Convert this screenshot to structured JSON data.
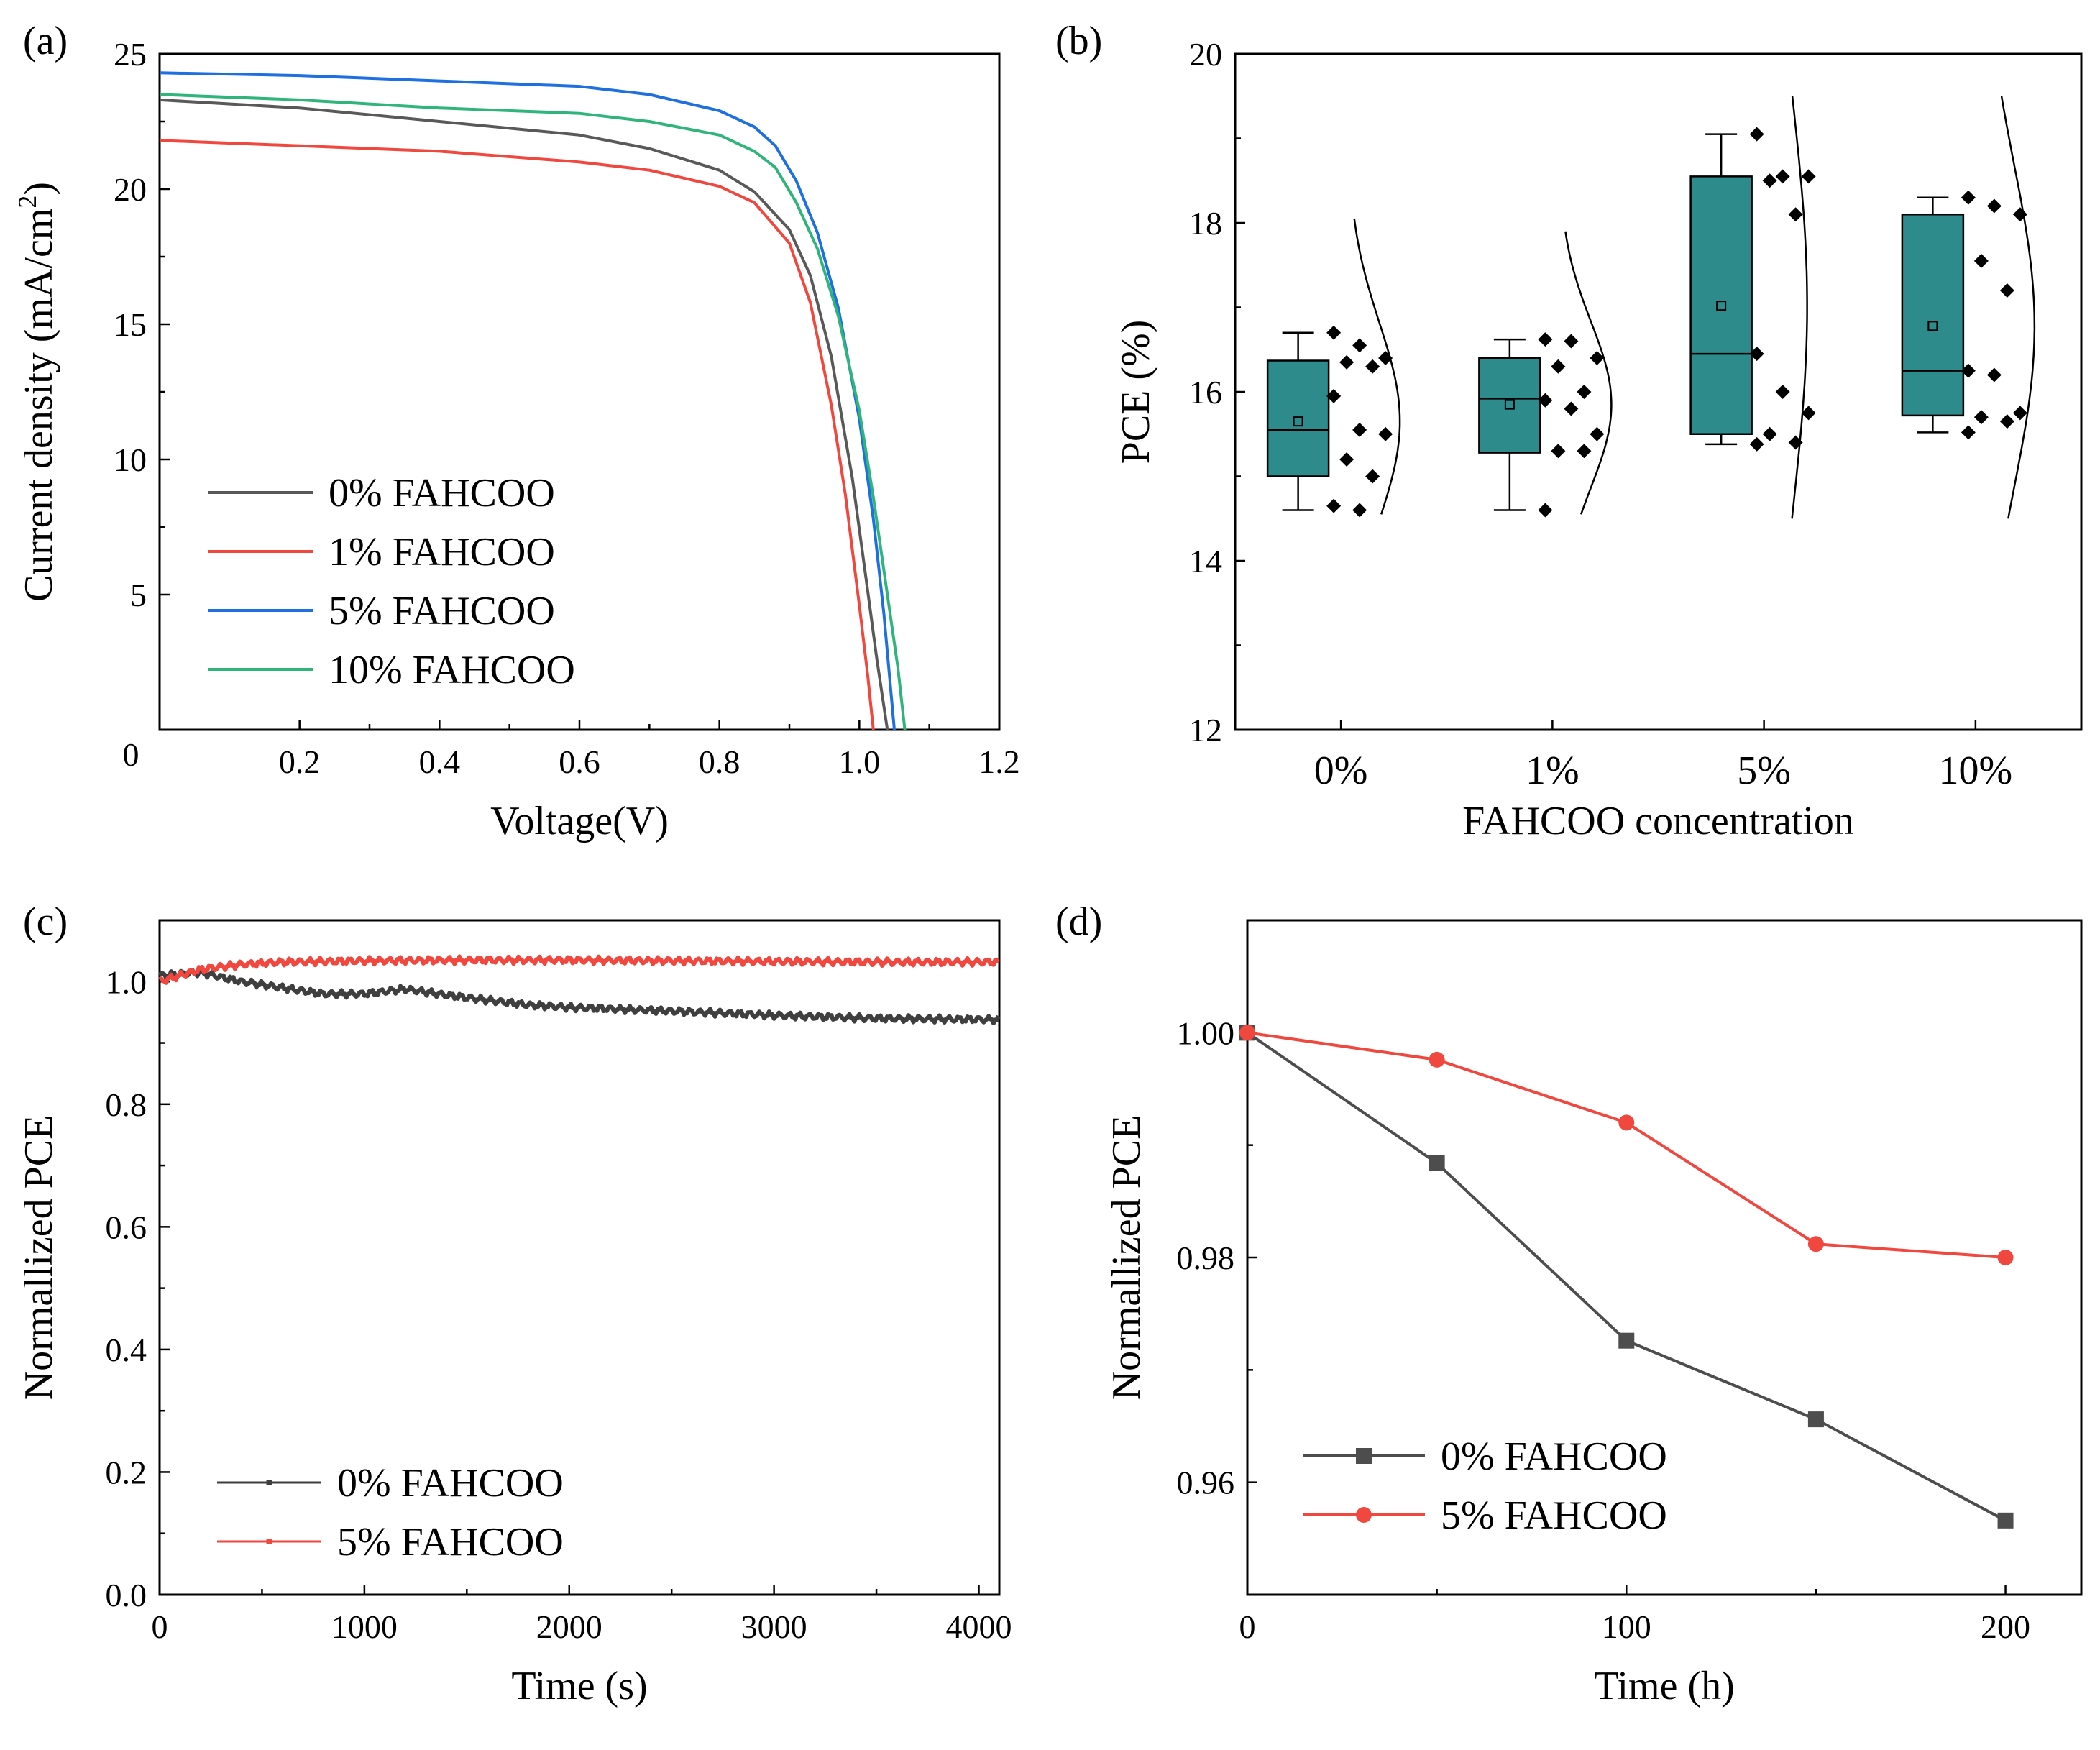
{
  "chart_data": [
    {
      "panel": "(a)",
      "type": "line",
      "xlabel": "Voltage(V)",
      "ylabel": "Current density (mA/cm",
      "ylabel_sup": "2",
      "ylabel_close": ")",
      "xlim": [
        0,
        1.2
      ],
      "ylim": [
        0,
        25
      ],
      "xticks": [
        0.2,
        0.4,
        0.6,
        0.8,
        1.0,
        1.2
      ],
      "xtick_labels": [
        "0.2",
        "0.4",
        "0.6",
        "0.8",
        "1.0",
        "1.2"
      ],
      "yticks": [
        5,
        10,
        15,
        20,
        25
      ],
      "ytick_labels": [
        "5",
        "10",
        "15",
        "20",
        "25"
      ],
      "origin_label": "0",
      "series": [
        {
          "name": "0% FAHCOO",
          "color": "#595959",
          "x": [
            0,
            0.2,
            0.4,
            0.6,
            0.7,
            0.8,
            0.85,
            0.9,
            0.93,
            0.96,
            0.99,
            1.01,
            1.025,
            1.04
          ],
          "y": [
            23.3,
            23.0,
            22.5,
            22.0,
            21.5,
            20.7,
            19.9,
            18.5,
            16.8,
            13.8,
            9.3,
            5.5,
            2.6,
            0
          ]
        },
        {
          "name": "1% FAHCOO",
          "color": "#f0473f",
          "x": [
            0,
            0.2,
            0.4,
            0.6,
            0.7,
            0.8,
            0.85,
            0.9,
            0.93,
            0.96,
            0.98,
            1.0,
            1.012,
            1.02
          ],
          "y": [
            21.8,
            21.6,
            21.4,
            21.0,
            20.7,
            20.1,
            19.5,
            18.0,
            15.8,
            12.0,
            8.7,
            4.6,
            2.0,
            0
          ]
        },
        {
          "name": "5% FAHCOO",
          "color": "#1e6fe0",
          "x": [
            0,
            0.2,
            0.4,
            0.6,
            0.7,
            0.8,
            0.85,
            0.88,
            0.91,
            0.94,
            0.97,
            1.0,
            1.02,
            1.035,
            1.05
          ],
          "y": [
            24.3,
            24.2,
            24.0,
            23.8,
            23.5,
            22.9,
            22.3,
            21.6,
            20.3,
            18.4,
            15.6,
            11.5,
            7.8,
            4.3,
            0
          ]
        },
        {
          "name": "10% FAHCOO",
          "color": "#2fb57c",
          "x": [
            0,
            0.2,
            0.4,
            0.6,
            0.7,
            0.8,
            0.85,
            0.88,
            0.91,
            0.94,
            0.97,
            1.0,
            1.02,
            1.04,
            1.055,
            1.065
          ],
          "y": [
            23.5,
            23.3,
            23.0,
            22.8,
            22.5,
            22.0,
            21.4,
            20.8,
            19.5,
            17.8,
            15.3,
            11.8,
            8.6,
            5.0,
            2.3,
            0
          ]
        }
      ]
    },
    {
      "panel": "(b)",
      "type": "box",
      "xlabel": "FAHCOO concentration",
      "ylabel": "PCE (%)",
      "ylim": [
        12,
        20
      ],
      "yticks": [
        12,
        14,
        16,
        18,
        20
      ],
      "ytick_labels": [
        "12",
        "14",
        "16",
        "18",
        "20"
      ],
      "categories": [
        "0%",
        "1%",
        "5%",
        "10%"
      ],
      "box_color": "#2e8b8b",
      "boxes": [
        {
          "q1": 15.0,
          "median": 15.55,
          "q3": 16.37,
          "mean": 15.65,
          "whisker_low": 14.6,
          "whisker_high": 16.7,
          "points": [
            16.7,
            16.55,
            16.4,
            16.35,
            16.3,
            15.95,
            15.55,
            15.5,
            15.2,
            15.0,
            14.65,
            14.6
          ]
        },
        {
          "q1": 15.28,
          "median": 15.92,
          "q3": 16.4,
          "mean": 15.85,
          "whisker_low": 14.6,
          "whisker_high": 16.62,
          "points": [
            16.62,
            16.6,
            16.4,
            16.3,
            16.0,
            15.9,
            15.8,
            15.5,
            15.3,
            15.3,
            14.6
          ]
        },
        {
          "q1": 15.5,
          "median": 16.45,
          "q3": 18.55,
          "mean": 17.02,
          "whisker_low": 15.38,
          "whisker_high": 19.05,
          "points": [
            19.05,
            18.55,
            18.55,
            18.5,
            18.1,
            16.45,
            16.0,
            15.75,
            15.5,
            15.4,
            15.38
          ]
        },
        {
          "q1": 15.72,
          "median": 16.25,
          "q3": 18.1,
          "mean": 16.78,
          "whisker_low": 15.52,
          "whisker_high": 18.3,
          "points": [
            18.3,
            18.2,
            18.1,
            17.55,
            17.2,
            16.25,
            16.2,
            15.75,
            15.7,
            15.65,
            15.52
          ]
        }
      ]
    },
    {
      "panel": "(c)",
      "type": "line",
      "xlabel": "Time (s)",
      "ylabel": "Normallized PCE",
      "xlim": [
        0,
        4100
      ],
      "ylim": [
        0,
        1.1
      ],
      "xticks": [
        0,
        1000,
        2000,
        3000,
        4000
      ],
      "xtick_labels": [
        "0",
        "1000",
        "2000",
        "3000",
        "4000"
      ],
      "yticks": [
        0,
        0.2,
        0.4,
        0.6,
        0.8,
        1.0
      ],
      "ytick_labels": [
        "0.0",
        "0.2",
        "0.4",
        "0.6",
        "0.8",
        "1.0"
      ],
      "series": [
        {
          "name": "0% FAHCOO",
          "color": "#3f3f3f",
          "x": [
            0,
            200,
            400,
            600,
            800,
            1000,
            1200,
            1400,
            1600,
            1800,
            2000,
            2500,
            3000,
            3500,
            4100
          ],
          "y": [
            1.01,
            1.015,
            1.0,
            0.99,
            0.98,
            0.98,
            0.988,
            0.978,
            0.97,
            0.962,
            0.958,
            0.952,
            0.945,
            0.94,
            0.938
          ]
        },
        {
          "name": "5% FAHCOO",
          "color": "#f0473f",
          "x": [
            0,
            200,
            400,
            600,
            800,
            1000,
            1500,
            2000,
            2500,
            3000,
            3500,
            4100
          ],
          "y": [
            1.0,
            1.02,
            1.028,
            1.032,
            1.033,
            1.034,
            1.035,
            1.035,
            1.034,
            1.033,
            1.032,
            1.032
          ]
        }
      ]
    },
    {
      "panel": "(d)",
      "type": "line",
      "xlabel": "Time (h)",
      "ylabel": "Normallized PCE",
      "xlim": [
        0,
        220
      ],
      "ylim": [
        0.95,
        1.01
      ],
      "xticks": [
        0,
        100,
        200
      ],
      "xtick_labels": [
        "0",
        "100",
        "200"
      ],
      "yticks": [
        0.96,
        0.98,
        1.0
      ],
      "ytick_labels": [
        "0.96",
        "0.98",
        "1.00"
      ],
      "series": [
        {
          "name": "0% FAHCOO",
          "color": "#4d4d4d",
          "marker": "square",
          "x": [
            0,
            50,
            100,
            150,
            200
          ],
          "y": [
            1.0,
            0.9884,
            0.9726,
            0.9656,
            0.9566
          ]
        },
        {
          "name": "5% FAHCOO",
          "color": "#f0473f",
          "marker": "circle",
          "x": [
            0,
            50,
            100,
            150,
            200
          ],
          "y": [
            1.0,
            0.9976,
            0.992,
            0.9812,
            0.98
          ]
        }
      ]
    }
  ]
}
